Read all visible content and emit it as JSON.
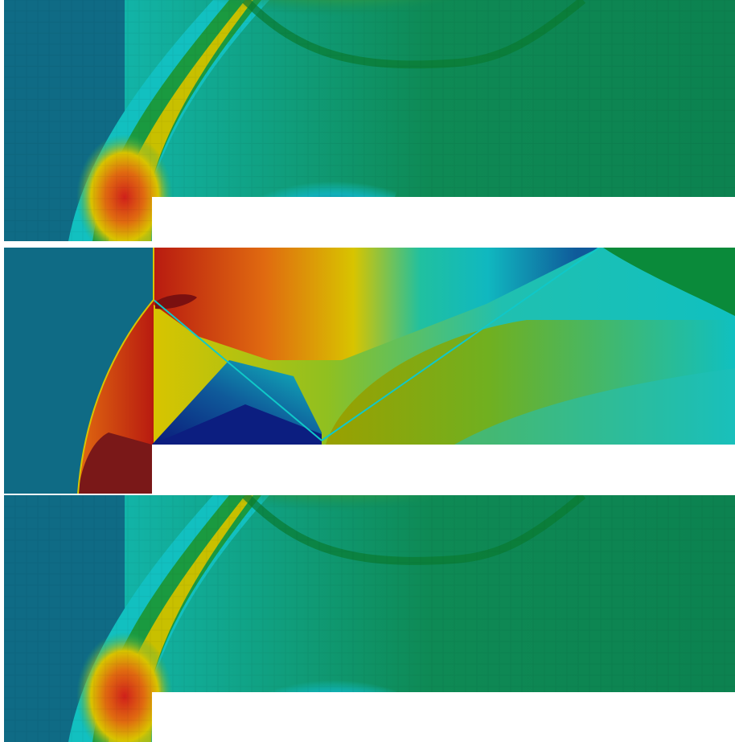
{
  "colormap": {
    "background_teal": "#0f6b85",
    "dark_blue": "#0a1a7a",
    "cyan": "#10c6c6",
    "green": "#0a8a3a",
    "yellow": "#d8c400",
    "orange": "#e06a10",
    "red": "#b81a10",
    "dark_red": "#7a1010",
    "free_stream_green": "#0e8a55",
    "wall_white": "#ffffff"
  },
  "panels": [
    {
      "id": "top",
      "style": "coarse-faceted"
    },
    {
      "id": "middle",
      "style": "smooth-reference"
    },
    {
      "id": "bottom",
      "style": "coarse-faceted"
    }
  ]
}
